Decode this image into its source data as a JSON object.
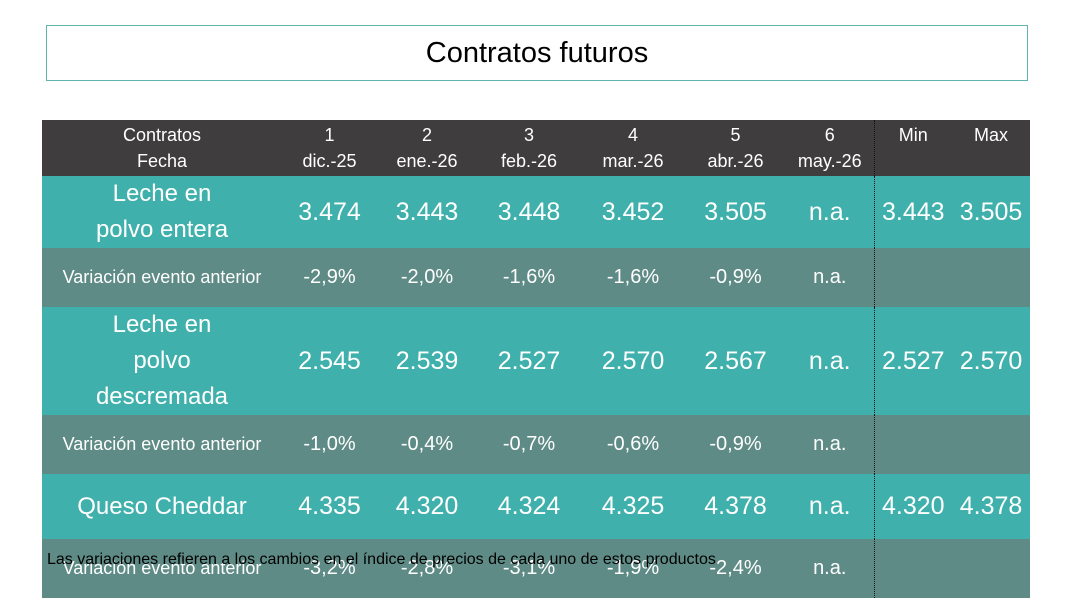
{
  "title": "Contratos futuros",
  "header": {
    "row1": [
      "Contratos",
      "1",
      "2",
      "3",
      "4",
      "5",
      "6",
      "Min",
      "Max"
    ],
    "row2": [
      "Fecha",
      "dic.-25",
      "ene.-26",
      "feb.-26",
      "mar.-26",
      "abr.-26",
      "may.-26",
      "",
      ""
    ]
  },
  "rows": [
    {
      "label": "Leche en polvo entera",
      "values": [
        "3.474",
        "3.443",
        "3.448",
        "3.452",
        "3.505",
        "n.a.",
        "3.443",
        "3.505"
      ]
    },
    {
      "label": "Variación evento anterior",
      "values": [
        "-2,9%",
        "-2,0%",
        "-1,6%",
        "-1,6%",
        "-0,9%",
        "n.a.",
        "",
        ""
      ]
    },
    {
      "label": "Leche en polvo descremada",
      "values": [
        "2.545",
        "2.539",
        "2.527",
        "2.570",
        "2.567",
        "n.a.",
        "2.527",
        "2.570"
      ]
    },
    {
      "label": "Variación evento anterior",
      "values": [
        "-1,0%",
        "-0,4%",
        "-0,7%",
        "-0,6%",
        "-0,9%",
        "n.a.",
        "",
        ""
      ]
    },
    {
      "label": "Queso Cheddar",
      "values": [
        "4.335",
        "4.320",
        "4.324",
        "4.325",
        "4.378",
        "n.a.",
        "4.320",
        "4.378"
      ]
    },
    {
      "label": "Variación evento anterior",
      "values": [
        "-3,2%",
        "-2,8%",
        "-3,1%",
        "-1,9%",
        "-2,4%",
        "n.a.",
        "",
        ""
      ]
    }
  ],
  "note": "Las variaciones refieren a los cambios en el índice de precios de cada uno de estos productos"
}
